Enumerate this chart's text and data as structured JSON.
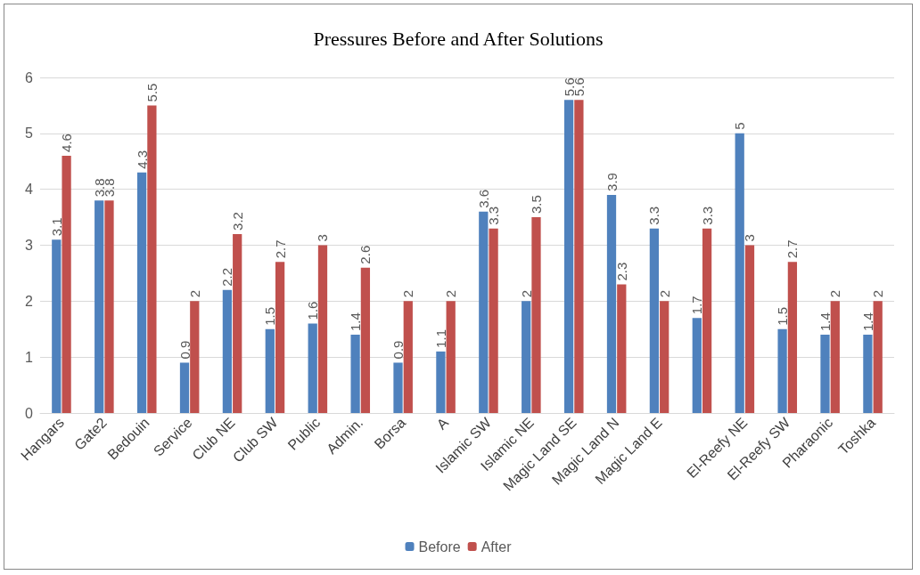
{
  "chart_data": {
    "type": "bar",
    "title": "Pressures Before and After Solutions",
    "categories": [
      "Hangars",
      "Gate2",
      "Bedouin",
      "Service",
      "Club NE",
      "Club SW",
      "Public",
      "Admin.",
      "Borsa",
      "A",
      "Islamic SW",
      "Islamic NE",
      "Magic Land SE",
      "Magic Land N",
      "Magic Land E",
      null,
      "El-Reefy NE",
      "El-Reefy SW",
      "Pharaonic",
      "Toshka"
    ],
    "series": [
      {
        "name": "Before",
        "color": "#4f81bd",
        "values": [
          3.1,
          3.8,
          4.3,
          0.9,
          2.2,
          1.5,
          1.6,
          1.4,
          0.9,
          1.1,
          3.6,
          2,
          5.6,
          3.9,
          3.3,
          1.7,
          5,
          1.5,
          1.4,
          1.4
        ]
      },
      {
        "name": "After",
        "color": "#c0504d",
        "values": [
          4.6,
          3.8,
          5.5,
          2,
          3.2,
          2.7,
          3,
          2.6,
          2,
          2,
          3.3,
          3.5,
          5.6,
          2.3,
          2,
          3.3,
          3,
          2.7,
          2,
          2
        ]
      }
    ],
    "ylim": [
      0,
      6
    ],
    "yticks": [
      0,
      1,
      2,
      3,
      4,
      5,
      6
    ],
    "grid": "y",
    "legend": "bottom",
    "data_labels": true
  }
}
